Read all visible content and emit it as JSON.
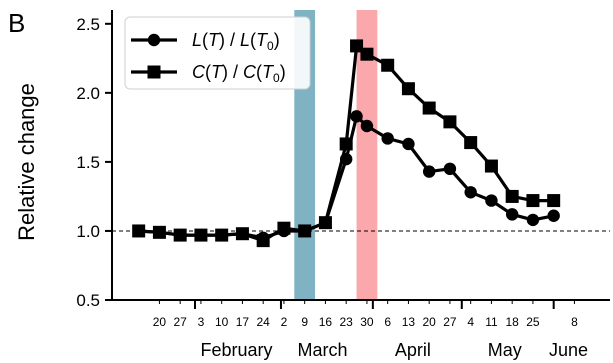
{
  "panel_label": "B",
  "chart_data": {
    "type": "line",
    "ylabel": "Relative change",
    "ylim": [
      0.5,
      2.6
    ],
    "yticks": [
      "0.5",
      "1.0",
      "1.5",
      "2.0",
      "2.5"
    ],
    "reference_line": {
      "y": 1.0,
      "style": "dashed"
    },
    "x_day_ticks": [
      {
        "x": 20,
        "label": "20"
      },
      {
        "x": 27,
        "label": "27"
      },
      {
        "x": 34,
        "label": "3"
      },
      {
        "x": 41,
        "label": "10"
      },
      {
        "x": 48,
        "label": "17"
      },
      {
        "x": 55,
        "label": "24"
      },
      {
        "x": 62,
        "label": "2"
      },
      {
        "x": 69,
        "label": "9"
      },
      {
        "x": 76,
        "label": "16"
      },
      {
        "x": 83,
        "label": "23"
      },
      {
        "x": 90,
        "label": "30"
      },
      {
        "x": 97,
        "label": "6"
      },
      {
        "x": 104,
        "label": "13"
      },
      {
        "x": 111,
        "label": "20"
      },
      {
        "x": 118,
        "label": "27"
      },
      {
        "x": 125,
        "label": "4"
      },
      {
        "x": 132,
        "label": "11"
      },
      {
        "x": 139,
        "label": "18"
      },
      {
        "x": 146,
        "label": "25"
      },
      {
        "x": 160,
        "label": "8"
      }
    ],
    "x_major_ticks": [
      32,
      61,
      92,
      122,
      153
    ],
    "months": [
      {
        "label": "February",
        "x": 46
      },
      {
        "label": "March",
        "x": 75
      },
      {
        "label": "April",
        "x": 105.5
      },
      {
        "label": "May",
        "x": 136.5
      },
      {
        "label": "June",
        "x": 158
      }
    ],
    "x_range": [
      12,
      164
    ],
    "shaded_regions": [
      {
        "start": 65.5,
        "end": 72.5,
        "color": "#7fb3c4"
      },
      {
        "start": 86.5,
        "end": 93.5,
        "color": "#fba8ad"
      }
    ],
    "x": [
      13,
      20,
      27,
      34,
      41,
      48,
      55,
      62,
      69,
      76,
      83,
      86.5,
      90,
      97,
      104,
      111,
      118,
      125,
      132,
      139,
      146,
      153,
      160
    ],
    "series": [
      {
        "name": "L(T) / L(T0)",
        "marker": "circle",
        "values": [
          1.0,
          0.99,
          0.97,
          0.97,
          0.97,
          0.98,
          0.95,
          1.0,
          1.0,
          1.06,
          1.52,
          1.83,
          1.76,
          1.67,
          1.63,
          1.43,
          1.45,
          1.28,
          1.22,
          1.12,
          1.08,
          1.11,
          null
        ]
      },
      {
        "name": "C(T) / C(T0)",
        "marker": "square",
        "values": [
          1.0,
          0.99,
          0.97,
          0.97,
          0.97,
          0.98,
          0.93,
          1.02,
          1.0,
          1.06,
          1.63,
          2.34,
          2.28,
          2.2,
          2.03,
          1.89,
          1.79,
          1.64,
          1.47,
          1.25,
          1.22,
          1.22,
          null
        ]
      }
    ],
    "legend": {
      "placement": "top-left",
      "entries": [
        {
          "marker": "circle",
          "parts": [
            {
              "t": "L"
            },
            {
              "t": "(",
              "upright": true
            },
            {
              "t": "T"
            },
            {
              "t": ") / ",
              "upright": true
            },
            {
              "t": "L"
            },
            {
              "t": "(",
              "upright": true
            },
            {
              "t": "T"
            },
            {
              "t": "0",
              "sub": true,
              "upright": true
            },
            {
              "t": ")",
              "upright": true
            }
          ]
        },
        {
          "marker": "square",
          "parts": [
            {
              "t": "C"
            },
            {
              "t": "(",
              "upright": true
            },
            {
              "t": "T"
            },
            {
              "t": ") / ",
              "upright": true
            },
            {
              "t": "C"
            },
            {
              "t": "(",
              "upright": true
            },
            {
              "t": "T"
            },
            {
              "t": "0",
              "sub": true,
              "upright": true
            },
            {
              "t": ")",
              "upright": true
            }
          ]
        }
      ]
    }
  }
}
